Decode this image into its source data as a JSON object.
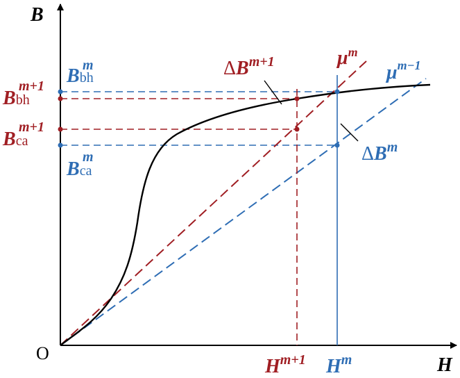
{
  "colors": {
    "axis": "#000000",
    "curve": "#000000",
    "red": "#A01E23",
    "blue": "#2E6DB4"
  },
  "labels": {
    "y_axis": "B",
    "x_axis": "H",
    "origin": "O",
    "mu_m": {
      "base": "μ",
      "sup": "m"
    },
    "mu_m_minus": {
      "base": "μ",
      "sup": "m−1"
    },
    "b_bh_m": {
      "base": "B",
      "sub": "bh",
      "sup": "m"
    },
    "b_bh_m1": {
      "base": "B",
      "sub": "bh",
      "sup": "m+1"
    },
    "b_ca_m1": {
      "base": "B",
      "sub": "ca",
      "sup": "m+1"
    },
    "b_ca_m": {
      "base": "B",
      "sub": "ca",
      "sup": "m"
    },
    "delta_b_m1": {
      "delta": "Δ",
      "base": "B",
      "sup": "m+1"
    },
    "delta_b_m": {
      "delta": "Δ",
      "base": "B",
      "sup": "m"
    },
    "h_m1": {
      "base": "H",
      "sup": "m+1"
    },
    "h_m": {
      "base": "H",
      "sup": "m"
    }
  }
}
